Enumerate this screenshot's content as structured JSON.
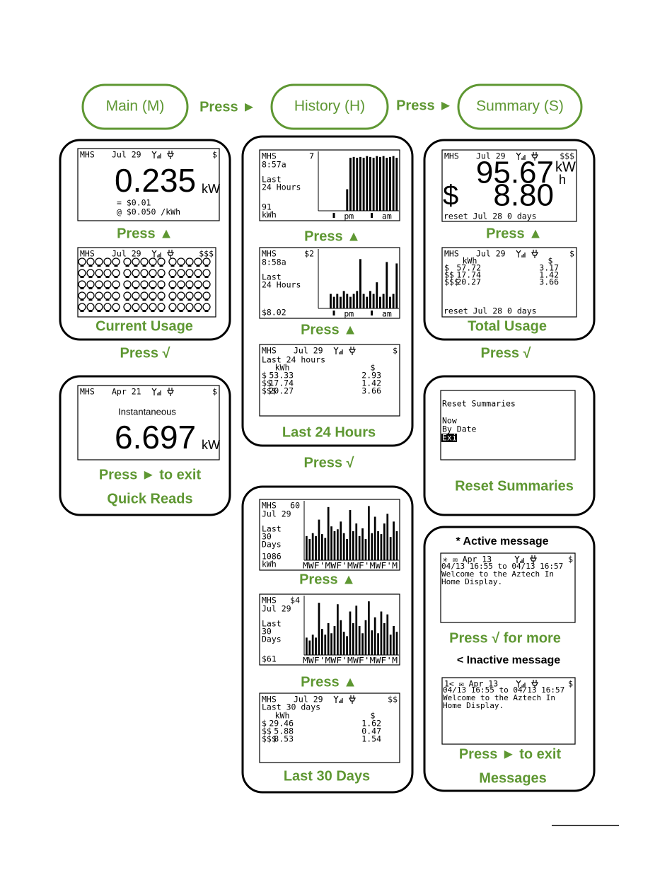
{
  "header": {
    "steps": [
      "Main (M)",
      "History (H)",
      "Summary (S)"
    ],
    "arrows": [
      "Press ►",
      "Press ►"
    ]
  },
  "main": {
    "current_usage": {
      "screen1": {
        "mode": "MHS",
        "date": "Jul 29",
        "tier": "$",
        "reading": "0.235",
        "unit": "kW",
        "cost": "= $0.01",
        "rate": "@ $0.050 /kWh"
      },
      "press": "Press ▲",
      "screen2": {
        "mode": "MHS",
        "date": "Jul 29",
        "tier": "$$$"
      },
      "title": "Current Usage"
    },
    "press": "Press √",
    "quick_reads": {
      "screen": {
        "mode": "MHS",
        "date": "Apr 21",
        "tier": "$",
        "heading": "Instantaneous",
        "reading": "6.697",
        "unit": "kW"
      },
      "press": "Press ► to exit",
      "title": "Quick Reads"
    }
  },
  "history": {
    "last_24_hours": {
      "kwh_chart": {
        "mode": "MHS",
        "ymax": 7,
        "time": "8:57a",
        "label": [
          "Last",
          "24 Hours"
        ],
        "total": [
          "91",
          "kWh"
        ],
        "bars": [
          0,
          0,
          0,
          0,
          0,
          0,
          0,
          0,
          2.6,
          6.4,
          6.5,
          6.4,
          6.5,
          6.4,
          6.6,
          6.5,
          6.4,
          6.6,
          6.5,
          6.6,
          6.4,
          6.5,
          6.6,
          6.4
        ],
        "xlabels": [
          "pm",
          "am"
        ]
      },
      "press1": "Press ▲",
      "cost_chart": {
        "mode": "MHS",
        "ymax": {
          "value": 2,
          "label": "$2"
        },
        "time": "8:58a",
        "label": [
          "Last",
          "24 Hours"
        ],
        "total": [
          "$8.02"
        ],
        "bars": [
          0,
          0,
          0,
          0.5,
          0.4,
          0.5,
          0.4,
          0.6,
          0.5,
          0.4,
          0.5,
          0.6,
          1.7,
          0.5,
          0.4,
          0.6,
          0.5,
          0.9,
          0.4,
          0.5,
          1.6,
          0.4,
          0.5,
          1.55
        ],
        "xlabels": [
          "pm",
          "am"
        ]
      },
      "press2": "Press ▲",
      "table": {
        "mode": "MHS",
        "date": "Jul 29",
        "tier": "$",
        "heading": "Last 24 hours",
        "columns": [
          "kWh",
          "$"
        ],
        "rows": [
          [
            "$",
            "53.33",
            "2.93"
          ],
          [
            "$$",
            "17.74",
            "1.42"
          ],
          [
            "$$$",
            "20.27",
            "3.66"
          ]
        ]
      },
      "title": "Last 24 Hours"
    },
    "press": "Press √",
    "last_30_days": {
      "kwh_chart": {
        "mode": "MHS",
        "ymax": 60,
        "time": "Jul 29",
        "label": [
          "Last",
          "30",
          "Days"
        ],
        "total": [
          "1086",
          "kWh"
        ],
        "bars": [
          25,
          22,
          28,
          25,
          42,
          27,
          23,
          55,
          35,
          30,
          32,
          40,
          28,
          22,
          52,
          30,
          38,
          25,
          33,
          22,
          56,
          28,
          45,
          30,
          27,
          38,
          48,
          24,
          40,
          30
        ],
        "xaxis": "MWF'MWF'MWF'MWF'M"
      },
      "press1": "Press ▲",
      "cost_chart": {
        "mode": "MHS",
        "ymax": {
          "value": 4,
          "label": "$4"
        },
        "time": "Jul 29",
        "label": [
          "Last",
          "30",
          "Days"
        ],
        "total": [
          "$61"
        ],
        "bars": [
          1.2,
          1.0,
          1.4,
          1.2,
          3.6,
          1.8,
          1.4,
          2.2,
          1.5,
          2.0,
          3.5,
          2.4,
          1.6,
          1.3,
          3.0,
          2.2,
          3.4,
          2.0,
          1.5,
          2.4,
          3.7,
          1.7,
          2.6,
          1.5,
          3.0,
          2.2,
          2.8,
          1.4,
          2.0,
          1.6
        ],
        "xaxis": "MWF'MWF'MWF'MWF'M"
      },
      "press2": "Press ▲",
      "table": {
        "mode": "MHS",
        "date": "Jul 29",
        "tier": "$$",
        "heading": "Last 30 days",
        "columns": [
          "kWh",
          "$"
        ],
        "rows": [
          [
            "$",
            "29.46",
            "1.62"
          ],
          [
            "$$",
            "5.88",
            "0.47"
          ],
          [
            "$$$",
            "8.53",
            "1.54"
          ]
        ]
      },
      "title": "Last  30 Days"
    }
  },
  "summary": {
    "total_usage": {
      "screen1": {
        "mode": "MHS",
        "date": "Jul 29",
        "tier": "$$$",
        "kwh": "95.67",
        "unit_top": "kW",
        "unit_bottom": "h",
        "cost_symbol": "$",
        "cost": "8.80",
        "reset": "reset Jul 28   0 days"
      },
      "press": "Press ▲",
      "screen2": {
        "mode": "MHS",
        "date": "Jul 29",
        "tier": "$",
        "columns": [
          "kWh",
          "$"
        ],
        "rows": [
          [
            "$",
            "57.72",
            "3.17"
          ],
          [
            "$$",
            "17.74",
            "1.42"
          ],
          [
            "$$$",
            "20.27",
            "3.66"
          ]
        ],
        "reset": "reset Jul 28   0 days"
      },
      "title": "Total Usage"
    },
    "press": "Press √",
    "reset_summaries": {
      "screen": {
        "heading": "Reset Summaries",
        "options": [
          "Now",
          "By Date",
          "Exit"
        ]
      },
      "title": "Reset Summaries"
    },
    "messages": {
      "active_note": "* Active message",
      "active_screen": {
        "status": "✳  ✉ Apr 13",
        "tier": "$",
        "lines": [
          "04/13 16:55 to 04/13 16:57",
          "Welcome to the Aztech In",
          "Home Display."
        ]
      },
      "press1": "Press √ for more",
      "inactive_note": "< Inactive message",
      "inactive_screen": {
        "status": "1<  ✉ Apr 13",
        "tier": "$",
        "lines": [
          "04/13 16:55 to 04/13 16:57",
          "Welcome to the Aztech In",
          "Home Display."
        ]
      },
      "press2": "Press ► to exit",
      "title": "Messages"
    }
  }
}
